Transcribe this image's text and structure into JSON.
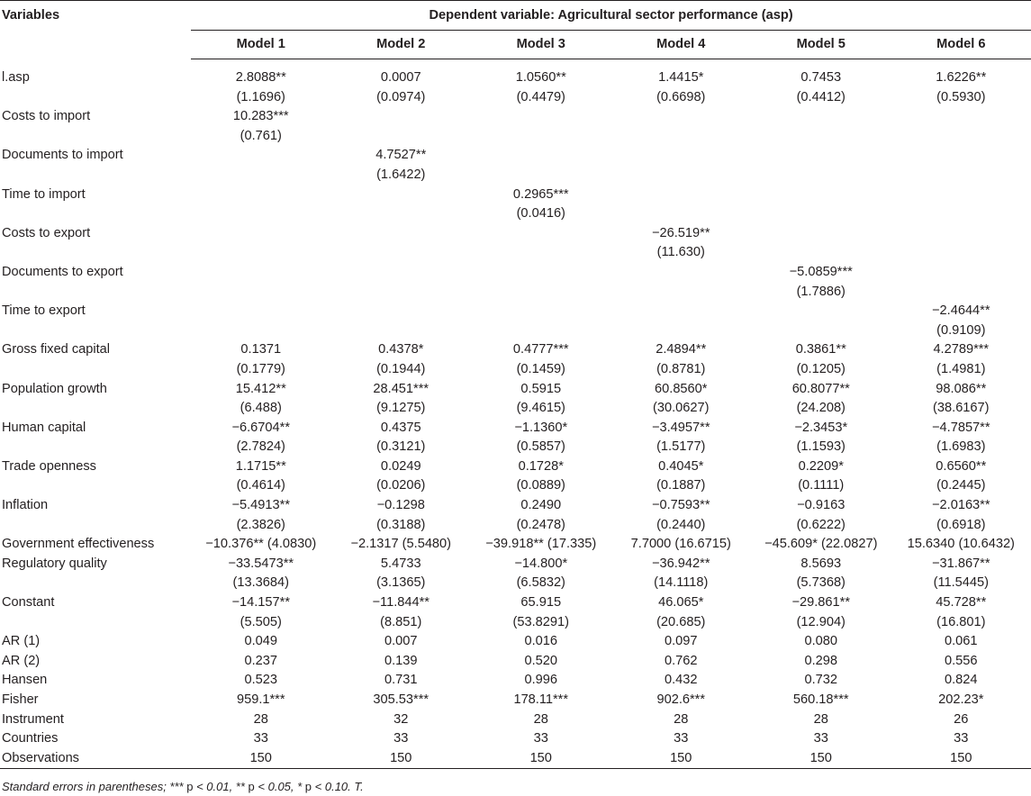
{
  "header": {
    "variables_label": "Variables",
    "dependent_label": "Dependent variable: Agricultural sector performance (asp)",
    "models": [
      "Model 1",
      "Model 2",
      "Model 3",
      "Model 4",
      "Model 5",
      "Model 6"
    ]
  },
  "rows": [
    {
      "label": "l.asp",
      "cells": [
        [
          "2.8088**",
          "(1.1696)"
        ],
        [
          "0.0007",
          "(0.0974)"
        ],
        [
          "1.0560**",
          "(0.4479)"
        ],
        [
          "1.4415*",
          "(0.6698)"
        ],
        [
          "0.7453",
          "(0.4412)"
        ],
        [
          "1.6226**",
          "(0.5930)"
        ]
      ]
    },
    {
      "label": "Costs to import",
      "cells": [
        [
          "10.283***",
          "(0.761)"
        ],
        [
          "",
          ""
        ],
        [
          "",
          ""
        ],
        [
          "",
          ""
        ],
        [
          "",
          ""
        ],
        [
          "",
          ""
        ]
      ]
    },
    {
      "label": "Documents to import",
      "cells": [
        [
          "",
          ""
        ],
        [
          "4.7527**",
          "(1.6422)"
        ],
        [
          "",
          ""
        ],
        [
          "",
          ""
        ],
        [
          "",
          ""
        ],
        [
          "",
          ""
        ]
      ]
    },
    {
      "label": "Time to import",
      "cells": [
        [
          "",
          ""
        ],
        [
          "",
          ""
        ],
        [
          "0.2965***",
          "(0.0416)"
        ],
        [
          "",
          ""
        ],
        [
          "",
          ""
        ],
        [
          "",
          ""
        ]
      ]
    },
    {
      "label": "Costs to export",
      "cells": [
        [
          "",
          ""
        ],
        [
          "",
          ""
        ],
        [
          "",
          ""
        ],
        [
          "−26.519**",
          "(11.630)"
        ],
        [
          "",
          ""
        ],
        [
          "",
          ""
        ]
      ]
    },
    {
      "label": "Documents to export",
      "cells": [
        [
          "",
          ""
        ],
        [
          "",
          ""
        ],
        [
          "",
          ""
        ],
        [
          "",
          ""
        ],
        [
          "−5.0859***",
          "(1.7886)"
        ],
        [
          "",
          ""
        ]
      ]
    },
    {
      "label": "Time to export",
      "cells": [
        [
          "",
          ""
        ],
        [
          "",
          ""
        ],
        [
          "",
          ""
        ],
        [
          "",
          ""
        ],
        [
          "",
          ""
        ],
        [
          "−2.4644**",
          "(0.9109)"
        ]
      ]
    },
    {
      "label": "Gross fixed capital",
      "cells": [
        [
          "0.1371",
          "(0.1779)"
        ],
        [
          "0.4378*",
          "(0.1944)"
        ],
        [
          "0.4777***",
          "(0.1459)"
        ],
        [
          "2.4894**",
          "(0.8781)"
        ],
        [
          "0.3861**",
          "(0.1205)"
        ],
        [
          "4.2789***",
          "(1.4981)"
        ]
      ]
    },
    {
      "label": "Population growth",
      "cells": [
        [
          "15.412**",
          "(6.488)"
        ],
        [
          "28.451***",
          "(9.1275)"
        ],
        [
          "0.5915",
          "(9.4615)"
        ],
        [
          "60.8560*",
          "(30.0627)"
        ],
        [
          "60.8077**",
          "(24.208)"
        ],
        [
          "98.086**",
          "(38.6167)"
        ]
      ]
    },
    {
      "label": "Human capital",
      "cells": [
        [
          "−6.6704**",
          "(2.7824)"
        ],
        [
          "0.4375",
          "(0.3121)"
        ],
        [
          "−1.1360*",
          "(0.5857)"
        ],
        [
          "−3.4957**",
          "(1.5177)"
        ],
        [
          "−2.3453*",
          "(1.1593)"
        ],
        [
          "−4.7857**",
          "(1.6983)"
        ]
      ]
    },
    {
      "label": "Trade openness",
      "cells": [
        [
          "1.1715**",
          "(0.4614)"
        ],
        [
          "0.0249",
          "(0.0206)"
        ],
        [
          "0.1728*",
          "(0.0889)"
        ],
        [
          "0.4045*",
          "(0.1887)"
        ],
        [
          "0.2209*",
          "(0.1111)"
        ],
        [
          "0.6560**",
          "(0.2445)"
        ]
      ]
    },
    {
      "label": "Inflation",
      "cells": [
        [
          "−5.4913**",
          "(2.3826)"
        ],
        [
          "−0.1298",
          "(0.3188)"
        ],
        [
          "0.2490",
          "(0.2478)"
        ],
        [
          "−0.7593**",
          "(0.2440)"
        ],
        [
          "−0.9163",
          "(0.6222)"
        ],
        [
          "−2.0163**",
          "(0.6918)"
        ]
      ]
    },
    {
      "label": "Government effectiveness",
      "cells": [
        [
          "−10.376** (4.0830)"
        ],
        [
          "−2.1317 (5.5480)"
        ],
        [
          "−39.918** (17.335)"
        ],
        [
          "7.7000 (16.6715)"
        ],
        [
          "−45.609* (22.0827)"
        ],
        [
          "15.6340 (10.6432)"
        ]
      ]
    },
    {
      "label": "Regulatory quality",
      "cells": [
        [
          "−33.5473**",
          "(13.3684)"
        ],
        [
          "5.4733",
          "(3.1365)"
        ],
        [
          "−14.800*",
          "(6.5832)"
        ],
        [
          "−36.942**",
          "(14.1118)"
        ],
        [
          "8.5693",
          "(5.7368)"
        ],
        [
          "−31.867**",
          "(11.5445)"
        ]
      ]
    },
    {
      "label": "Constant",
      "cells": [
        [
          "−14.157**",
          "(5.505)"
        ],
        [
          "−11.844**",
          "(8.851)"
        ],
        [
          "65.915",
          "(53.8291)"
        ],
        [
          "46.065*",
          "(20.685)"
        ],
        [
          "−29.861**",
          "(12.904)"
        ],
        [
          "45.728**",
          "(16.801)"
        ]
      ]
    },
    {
      "label": "AR (1)",
      "cells": [
        [
          "0.049"
        ],
        [
          "0.007"
        ],
        [
          "0.016"
        ],
        [
          "0.097"
        ],
        [
          "0.080"
        ],
        [
          "0.061"
        ]
      ]
    },
    {
      "label": "AR (2)",
      "cells": [
        [
          "0.237"
        ],
        [
          "0.139"
        ],
        [
          "0.520"
        ],
        [
          "0.762"
        ],
        [
          "0.298"
        ],
        [
          "0.556"
        ]
      ]
    },
    {
      "label": "Hansen",
      "cells": [
        [
          "0.523"
        ],
        [
          "0.731"
        ],
        [
          "0.996"
        ],
        [
          "0.432"
        ],
        [
          "0.732"
        ],
        [
          "0.824"
        ]
      ]
    },
    {
      "label": "Fisher",
      "cells": [
        [
          "959.1***"
        ],
        [
          "305.53***"
        ],
        [
          "178.11***"
        ],
        [
          "902.6***"
        ],
        [
          "560.18***"
        ],
        [
          "202.23*"
        ]
      ]
    },
    {
      "label": "Instrument",
      "cells": [
        [
          "28"
        ],
        [
          "32"
        ],
        [
          "28"
        ],
        [
          "28"
        ],
        [
          "28"
        ],
        [
          "26"
        ]
      ]
    },
    {
      "label": "Countries",
      "cells": [
        [
          "33"
        ],
        [
          "33"
        ],
        [
          "33"
        ],
        [
          "33"
        ],
        [
          "33"
        ],
        [
          "33"
        ]
      ]
    },
    {
      "label": "Observations",
      "cells": [
        [
          "150"
        ],
        [
          "150"
        ],
        [
          "150"
        ],
        [
          "150"
        ],
        [
          "150"
        ],
        [
          "150"
        ]
      ]
    }
  ],
  "footnote": {
    "prefix": "Standard errors in parentheses; *** ",
    "p1": "p",
    "mid1": " < 0.01, ** ",
    "p2": "p",
    "mid2": " < 0.05, * ",
    "p3": "p",
    "suffix": " < 0.10. T."
  }
}
